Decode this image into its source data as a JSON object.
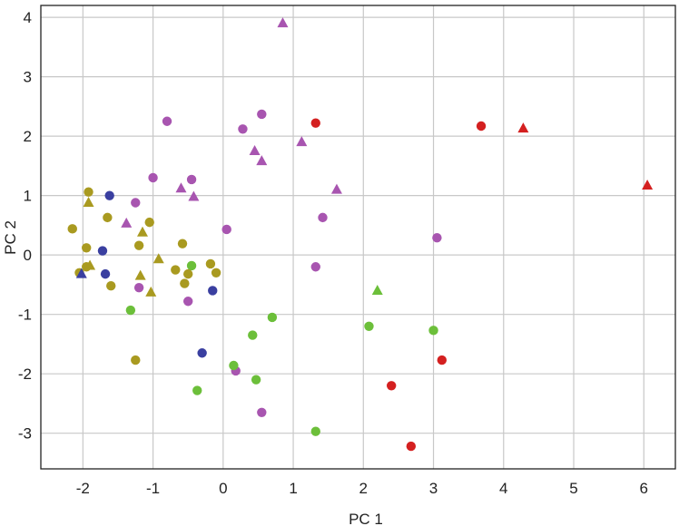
{
  "chart_data": {
    "type": "scatter",
    "xlabel": "PC 1",
    "ylabel": "PC 2",
    "xlim": [
      -2.6,
      6.45
    ],
    "ylim": [
      -3.6,
      4.2
    ],
    "xticks": [
      -2,
      -1,
      0,
      1,
      2,
      3,
      4,
      5,
      6
    ],
    "yticks": [
      -3,
      -2,
      -1,
      0,
      1,
      2,
      3,
      4
    ],
    "xtick_labels": [
      "-2",
      "-1",
      "0",
      "1",
      "2",
      "3",
      "4",
      "5",
      "6"
    ],
    "ytick_labels": [
      "-3",
      "-2",
      "-1",
      "0",
      "1",
      "2",
      "3",
      "4"
    ],
    "grid": true,
    "legend": "none",
    "series": [
      {
        "color": "#d42020",
        "circles": [
          [
            1.32,
            2.22
          ],
          [
            3.68,
            2.17
          ],
          [
            3.12,
            -1.77
          ],
          [
            2.4,
            -2.2
          ],
          [
            2.68,
            -3.22
          ]
        ],
        "triangles": [
          [
            4.28,
            2.13
          ],
          [
            6.05,
            1.17
          ]
        ]
      },
      {
        "color": "#a855b0",
        "circles": [
          [
            -0.8,
            2.25
          ],
          [
            0.55,
            2.37
          ],
          [
            0.28,
            2.12
          ],
          [
            -1.0,
            1.3
          ],
          [
            -0.45,
            1.27
          ],
          [
            -1.25,
            0.88
          ],
          [
            0.05,
            0.43
          ],
          [
            1.42,
            0.63
          ],
          [
            3.05,
            0.29
          ],
          [
            1.32,
            -0.2
          ],
          [
            -1.2,
            -0.55
          ],
          [
            -0.5,
            -0.78
          ],
          [
            0.18,
            -1.95
          ],
          [
            0.55,
            -2.65
          ]
        ],
        "triangles": [
          [
            0.85,
            3.9
          ],
          [
            0.45,
            1.75
          ],
          [
            0.55,
            1.58
          ],
          [
            1.12,
            1.9
          ],
          [
            1.62,
            1.1
          ],
          [
            -0.6,
            1.12
          ],
          [
            -0.42,
            0.98
          ],
          [
            -1.38,
            0.53
          ]
        ]
      },
      {
        "color": "#6cbf3a",
        "circles": [
          [
            -0.45,
            -0.18
          ],
          [
            -1.32,
            -0.93
          ],
          [
            0.7,
            -1.05
          ],
          [
            0.42,
            -1.35
          ],
          [
            2.08,
            -1.2
          ],
          [
            3.0,
            -1.27
          ],
          [
            0.15,
            -1.86
          ],
          [
            0.47,
            -2.1
          ],
          [
            -0.37,
            -2.28
          ],
          [
            1.32,
            -2.97
          ]
        ],
        "triangles": [
          [
            2.2,
            -0.6
          ]
        ]
      },
      {
        "color": "#a99a20",
        "circles": [
          [
            -1.92,
            1.06
          ],
          [
            -1.65,
            0.63
          ],
          [
            -2.15,
            0.44
          ],
          [
            -1.05,
            0.55
          ],
          [
            -1.95,
            0.12
          ],
          [
            -1.2,
            0.16
          ],
          [
            -0.58,
            0.19
          ],
          [
            -2.05,
            -0.3
          ],
          [
            -1.95,
            -0.2
          ],
          [
            -1.6,
            -0.52
          ],
          [
            -0.68,
            -0.25
          ],
          [
            -0.5,
            -0.32
          ],
          [
            -0.55,
            -0.48
          ],
          [
            -0.18,
            -0.15
          ],
          [
            -0.1,
            -0.3
          ],
          [
            -1.25,
            -1.77
          ]
        ],
        "triangles": [
          [
            -1.92,
            0.88
          ],
          [
            -1.15,
            0.38
          ],
          [
            -1.9,
            -0.18
          ],
          [
            -0.92,
            -0.07
          ],
          [
            -1.18,
            -0.35
          ],
          [
            -1.03,
            -0.63
          ]
        ]
      },
      {
        "color": "#3a3fa0",
        "circles": [
          [
            -1.62,
            1.0
          ],
          [
            -1.72,
            0.07
          ],
          [
            -1.68,
            -0.32
          ],
          [
            -0.15,
            -0.6
          ],
          [
            -0.3,
            -1.65
          ]
        ],
        "triangles": [
          [
            -2.02,
            -0.32
          ]
        ]
      }
    ]
  }
}
